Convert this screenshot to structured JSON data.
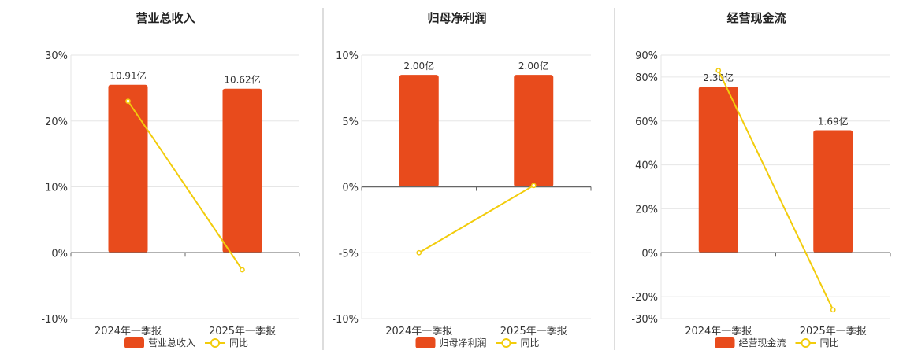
{
  "colors": {
    "bar": "#E84B1C",
    "line": "#F2CC0C",
    "grid": "#E6E6E6",
    "axis": "#666666",
    "divider": "#BBBBBB"
  },
  "chart_data": [
    {
      "type": "bar",
      "title": "营业总收入",
      "categories": [
        "2024年一季报",
        "2025年一季报"
      ],
      "series": [
        {
          "name": "营业总收入",
          "type": "bar",
          "values": [
            10.91,
            10.62
          ],
          "labels": [
            "10.91亿",
            "10.62亿"
          ]
        },
        {
          "name": "同比",
          "type": "line",
          "values": [
            23.0,
            -2.6
          ]
        }
      ],
      "yticks": [
        "30%",
        "20%",
        "10%",
        "0%",
        "-10%"
      ],
      "ylim": [
        -10,
        30
      ],
      "bar_fraction": [
        0.85,
        0.83
      ],
      "legend": "bottom"
    },
    {
      "type": "bar",
      "title": "归母净利润",
      "categories": [
        "2024年一季报",
        "2025年一季报"
      ],
      "series": [
        {
          "name": "归母净利润",
          "type": "bar",
          "values": [
            2.0,
            2.0
          ],
          "labels": [
            "2.00亿",
            "2.00亿"
          ]
        },
        {
          "name": "同比",
          "type": "line",
          "values": [
            -5.0,
            0.1
          ]
        }
      ],
      "yticks": [
        "10%",
        "5%",
        "0%",
        "-5%",
        "-10%"
      ],
      "ylim": [
        -10,
        10
      ],
      "bar_fraction": [
        0.85,
        0.85
      ],
      "legend": "bottom"
    },
    {
      "type": "bar",
      "title": "经营现金流",
      "categories": [
        "2024年一季报",
        "2025年一季报"
      ],
      "series": [
        {
          "name": "经营现金流",
          "type": "bar",
          "values": [
            2.3,
            1.69
          ],
          "labels": [
            "2.30亿",
            "1.69亿"
          ]
        },
        {
          "name": "同比",
          "type": "line",
          "values": [
            83.0,
            -26.0
          ]
        }
      ],
      "yticks": [
        "90%",
        "80%",
        "60%",
        "40%",
        "20%",
        "0%",
        "-20%",
        "-30%"
      ],
      "ylim": [
        -30,
        90
      ],
      "bar_fraction": [
        0.84,
        0.62
      ],
      "legend": "bottom"
    }
  ]
}
